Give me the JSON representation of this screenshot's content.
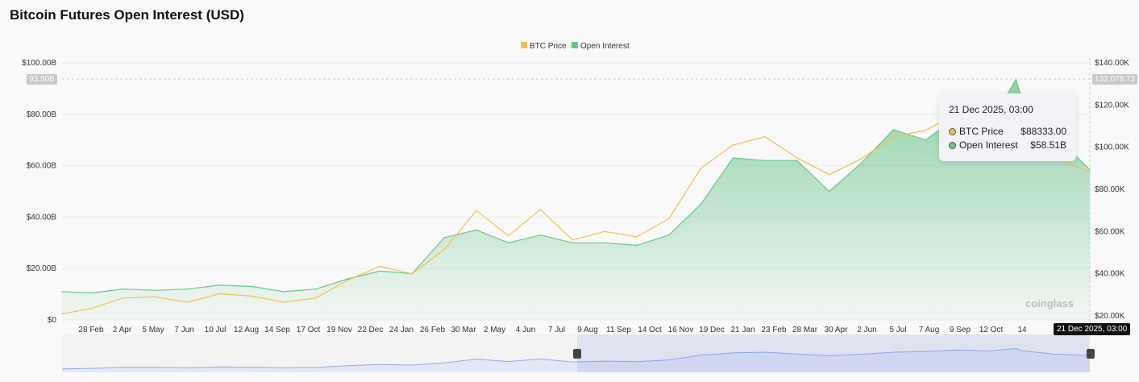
{
  "title": "Bitcoin Futures Open Interest (USD)",
  "watermark": "coinglass",
  "colors": {
    "btc_price": "#f0c04e",
    "open_interest": "#6cc48a",
    "navigator": "#8fa6e8"
  },
  "tooltip": {
    "date": "21 Dec 2025, 03:00",
    "rows": [
      {
        "label": "BTC Price",
        "value": "$88333.00"
      },
      {
        "label": "Open Interest",
        "value": "$58.51B"
      }
    ]
  },
  "crosshair": {
    "x_label": "21 Dec 2025, 03:00",
    "left_label": "93.50B",
    "right_label": "132,078.73"
  },
  "chart_data": {
    "type": "area",
    "title": "Bitcoin Futures Open Interest (USD)",
    "legend": {
      "position": "top-center",
      "entries": [
        "BTC Price",
        "Open Interest"
      ]
    },
    "left_axis": {
      "ticks": [
        "$0",
        "$20.00B",
        "$40.00B",
        "$60.00B",
        "$80.00B",
        "$100.00B"
      ],
      "range": [
        0,
        100
      ],
      "unit": "B USD"
    },
    "right_axis": {
      "ticks": [
        "$20.00K",
        "$40.00K",
        "$60.00K",
        "$80.00K",
        "$100.00K",
        "$120.00K",
        "$140.00K"
      ],
      "range": [
        20,
        140
      ],
      "unit": "K USD"
    },
    "x_ticks": [
      "28 Feb",
      "2 Apr",
      "5 May",
      "7 Jun",
      "10 Jul",
      "12 Aug",
      "14 Sep",
      "17 Oct",
      "19 Nov",
      "22 Dec",
      "24 Jan",
      "26 Feb",
      "30 Mar",
      "2 May",
      "4 Jun",
      "7 Jul",
      "9 Aug",
      "11 Sep",
      "14 Oct",
      "16 Nov",
      "19 Dec",
      "21 Jan",
      "23 Feb",
      "28 Mar",
      "30 Apr",
      "2 Jun",
      "5 Jul",
      "7 Aug",
      "9 Sep",
      "12 Oct",
      "14"
    ],
    "grid": true,
    "x": [
      "2023-01-29",
      "2023-02-28",
      "2023-04-02",
      "2023-05-05",
      "2023-06-07",
      "2023-07-10",
      "2023-08-12",
      "2023-09-14",
      "2023-10-17",
      "2023-11-19",
      "2023-12-22",
      "2024-01-24",
      "2024-02-26",
      "2024-03-30",
      "2024-05-02",
      "2024-06-04",
      "2024-07-07",
      "2024-08-09",
      "2024-09-11",
      "2024-10-14",
      "2024-11-16",
      "2024-12-19",
      "2025-01-21",
      "2025-02-23",
      "2025-03-28",
      "2025-04-30",
      "2025-06-02",
      "2025-07-05",
      "2025-08-07",
      "2025-09-09",
      "2025-10-06",
      "2025-10-12",
      "2025-11-14",
      "2025-12-21"
    ],
    "series": [
      {
        "name": "Open Interest",
        "axis": "left",
        "values": [
          11,
          10.5,
          12,
          11.5,
          12,
          13.5,
          13,
          11,
          12,
          16,
          19,
          18,
          32,
          35,
          30,
          33,
          30,
          30,
          29,
          33,
          45,
          63,
          62,
          62,
          50,
          61,
          74,
          70,
          79,
          76,
          93.5,
          86,
          72,
          58.51
        ]
      },
      {
        "name": "BTC Price",
        "axis": "right",
        "values": [
          21,
          23.5,
          28.5,
          29,
          26.5,
          30.5,
          29.4,
          26.5,
          28.5,
          37,
          43.5,
          40,
          51.5,
          70,
          58,
          70.5,
          56,
          60,
          57.5,
          66,
          90,
          101,
          105,
          95,
          87,
          94.5,
          105,
          108,
          116,
          111,
          123,
          112,
          95,
          88.333
        ]
      }
    ]
  }
}
